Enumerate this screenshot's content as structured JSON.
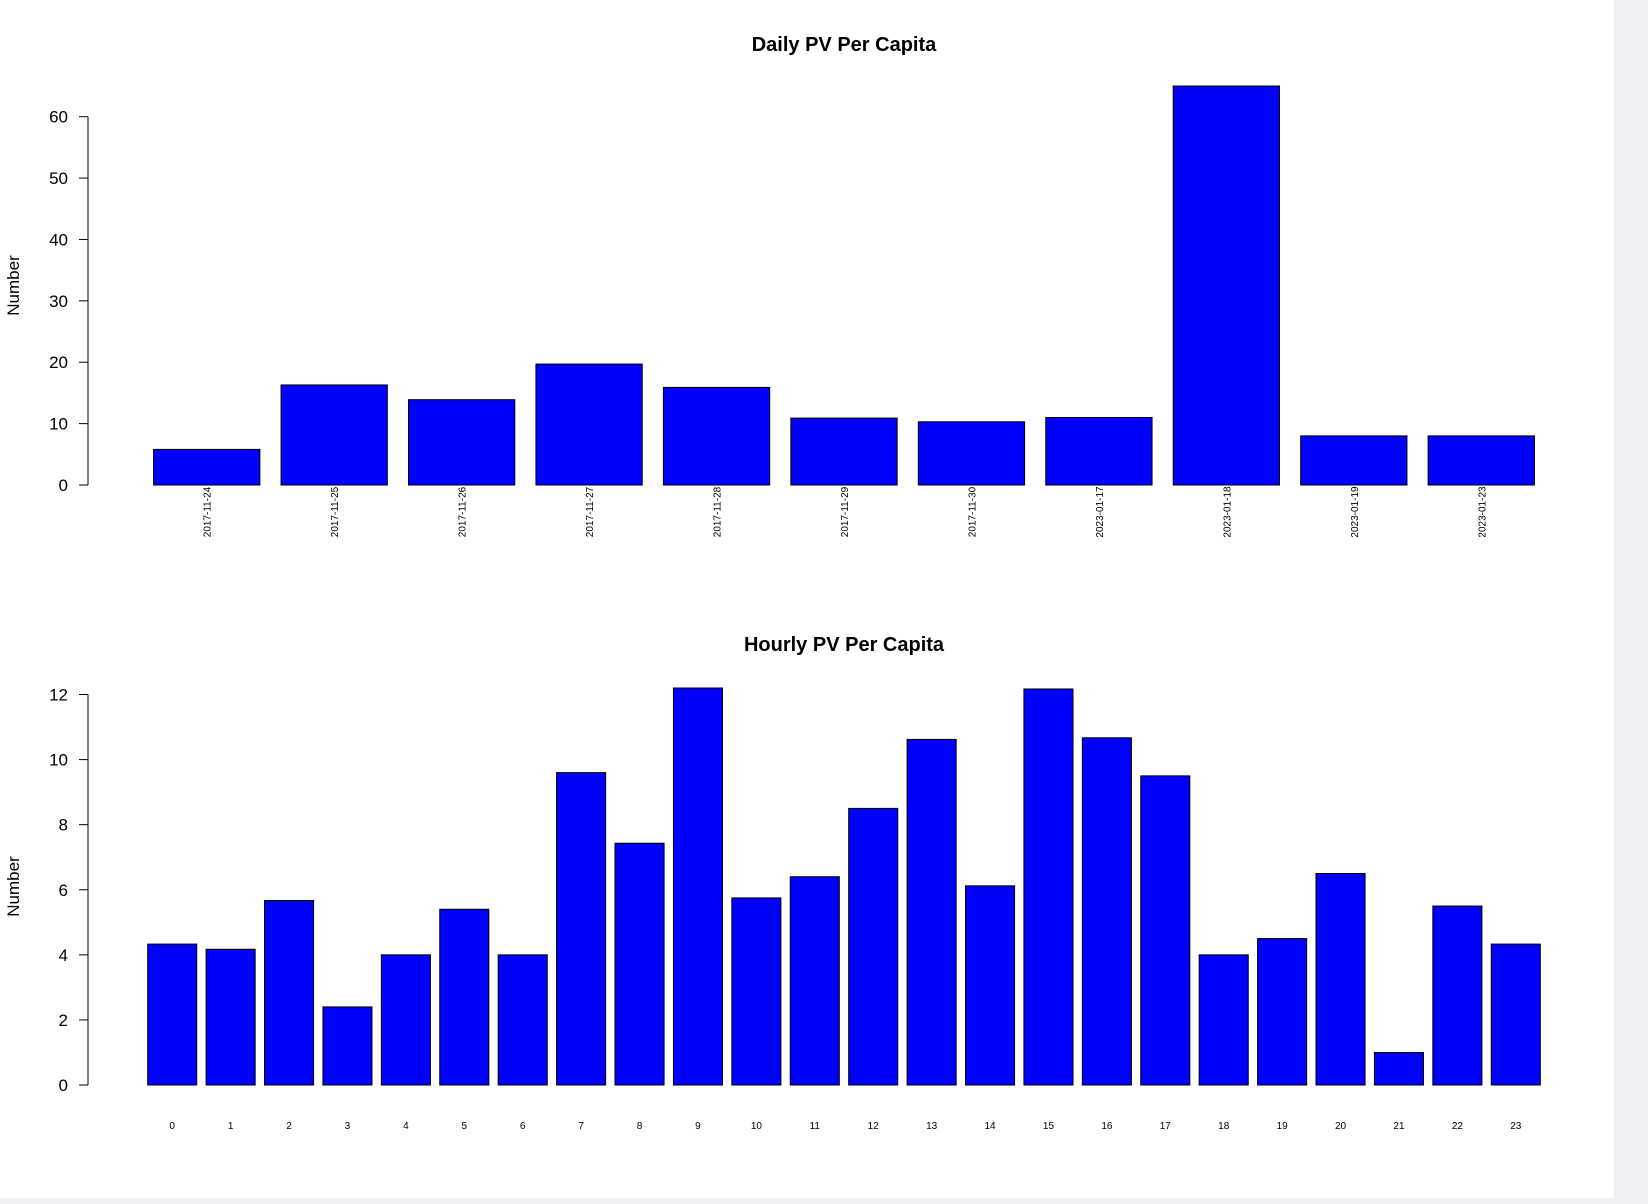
{
  "chart_data": [
    {
      "type": "bar",
      "title": "Daily PV Per Capita",
      "xlabel": "",
      "ylabel": "Number",
      "ylim": [
        0,
        65
      ],
      "yticks": [
        0,
        10,
        20,
        30,
        40,
        50,
        60
      ],
      "categories": [
        "2017-11-24",
        "2017-11-25",
        "2017-11-26",
        "2017-11-27",
        "2017-11-28",
        "2017-11-29",
        "2017-11-30",
        "2023-01-17",
        "2023-01-18",
        "2023-01-19",
        "2023-01-23"
      ],
      "values": [
        5.8,
        16.3,
        13.9,
        19.7,
        15.9,
        10.9,
        10.3,
        11.0,
        65.0,
        8.0,
        8.0
      ],
      "bar_color": "#0000ff",
      "grid": false,
      "tick_label_rotation": "vertical"
    },
    {
      "type": "bar",
      "title": "Hourly PV Per Capita",
      "xlabel": "",
      "ylabel": "Number",
      "ylim": [
        0,
        12.2
      ],
      "yticks": [
        0,
        2,
        4,
        6,
        8,
        10,
        12
      ],
      "categories": [
        "0",
        "1",
        "2",
        "3",
        "4",
        "5",
        "6",
        "7",
        "8",
        "9",
        "10",
        "11",
        "12",
        "13",
        "14",
        "15",
        "16",
        "17",
        "18",
        "19",
        "20",
        "21",
        "22",
        "23"
      ],
      "values": [
        4.33,
        4.17,
        5.67,
        2.4,
        4.0,
        5.4,
        4.0,
        9.6,
        7.43,
        12.2,
        5.75,
        6.4,
        8.5,
        10.62,
        6.12,
        12.17,
        10.67,
        9.5,
        4.0,
        4.5,
        6.5,
        1.0,
        5.5,
        4.33
      ],
      "bar_color": "#0000ff",
      "grid": false,
      "tick_label_rotation": "horizontal"
    }
  ]
}
